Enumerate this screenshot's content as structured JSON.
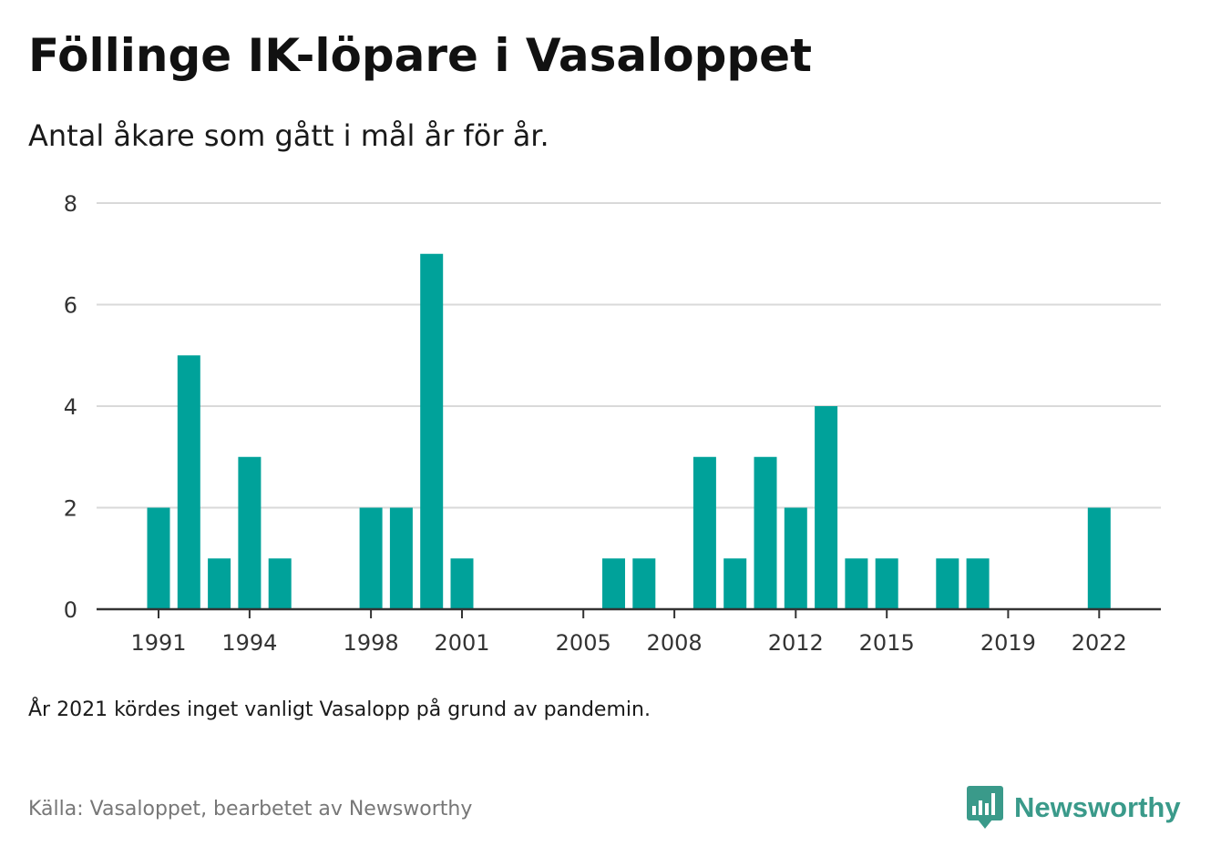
{
  "header": {
    "title": "Föllinge IK-löpare i Vasaloppet",
    "subtitle": "Antal åkare som gått i mål år för år."
  },
  "footer": {
    "note": "År 2021 kördes inget vanligt Vasalopp på grund av pandemin.",
    "source": "Källa: Vasaloppet, bearbetet av Newsworthy",
    "brand": "Newsworthy"
  },
  "colors": {
    "bar": "#00a29a",
    "grid": "#d9d9d9",
    "axis": "#333333",
    "brand": "#3a9a8a"
  },
  "chart_data": {
    "type": "bar",
    "title": "Föllinge IK-löpare i Vasaloppet",
    "subtitle": "Antal åkare som gått i mål år för år.",
    "xlabel": "",
    "ylabel": "",
    "ylim": [
      0,
      8
    ],
    "y_ticks": [
      0,
      2,
      4,
      6,
      8
    ],
    "x_tick_labels": [
      "1991",
      "1994",
      "1998",
      "2001",
      "2005",
      "2008",
      "2012",
      "2015",
      "2019",
      "2022"
    ],
    "grid": true,
    "legend": "none",
    "categories": [
      "1991",
      "1992",
      "1993",
      "1994",
      "1995",
      "1996",
      "1997",
      "1998",
      "1999",
      "2000",
      "2001",
      "2002",
      "2003",
      "2004",
      "2005",
      "2006",
      "2007",
      "2008",
      "2009",
      "2010",
      "2011",
      "2012",
      "2013",
      "2014",
      "2015",
      "2016",
      "2017",
      "2018",
      "2019",
      "2020",
      "2021",
      "2022"
    ],
    "values": [
      2,
      5,
      1,
      3,
      1,
      0,
      0,
      2,
      2,
      7,
      1,
      0,
      0,
      0,
      0,
      1,
      1,
      0,
      3,
      1,
      3,
      2,
      4,
      1,
      1,
      0,
      1,
      1,
      0,
      0,
      0,
      2
    ]
  }
}
